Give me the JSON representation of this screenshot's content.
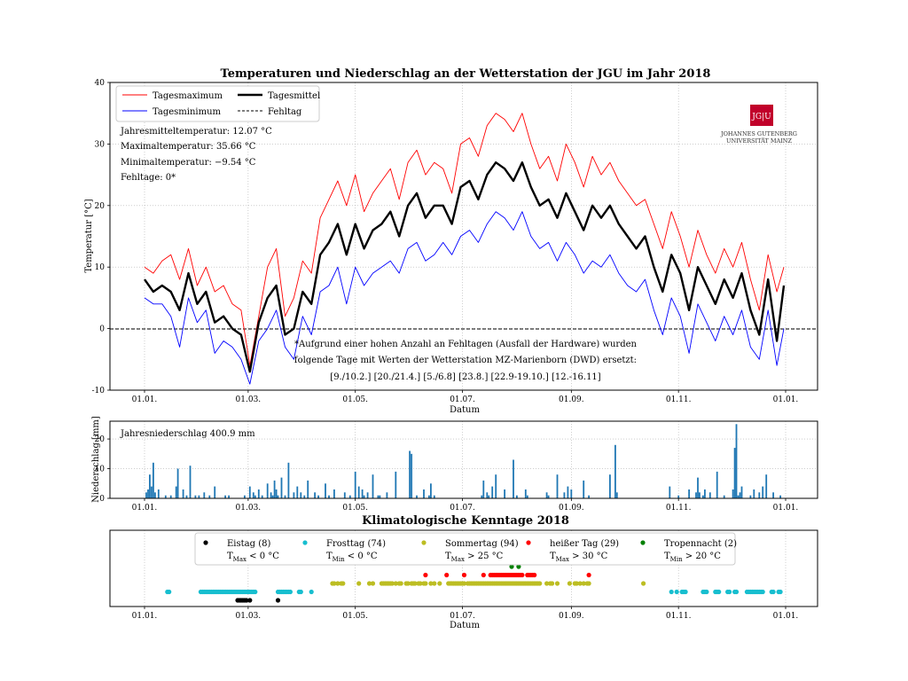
{
  "figure": {
    "title": "Temperaturen und Niederschlag an der Wetterstation der JGU im Jahr 2018",
    "title2": "Klimatologische Kenntage 2018"
  },
  "logo": {
    "text_box": "JG|U",
    "line1": "JOHANNES GUTENBERG",
    "line2": "UNIVERSITÄT MAINZ",
    "color": "#c1002a"
  },
  "temp_stats": {
    "line1": "Jahresmitteltemperatur: 12.07 °C",
    "line2": "Maximaltemperatur: 35.66 °C",
    "line3": "Minimaltemperatur: −9.54 °C",
    "line4": "Fehltage: 0*"
  },
  "note": {
    "line1": "*Aufgrund einer hohen Anzahl an Fehltagen (Ausfall der Hardware) wurden",
    "line2": "folgende Tage mit Werten der Wetterstation MZ-Marienborn (DWD) ersetzt:",
    "line3": "[9./10.2.] [20./21.4.] [5./6.8] [23.8.] [22.9-19.10.] [12.-16.11]"
  },
  "precip_label": "Jahresniederschlag 400.9 mm",
  "kenntage_legend": [
    {
      "label": "Eistag (8)",
      "cond": "T",
      "sub": "Max",
      "rel": " < 0 °C",
      "color": "#000000"
    },
    {
      "label": "Frosttag (74)",
      "cond": "T",
      "sub": "Min",
      "rel": " < 0 °C",
      "color": "#17becf"
    },
    {
      "label": "Sommertag (94)",
      "cond": "T",
      "sub": "Max",
      "rel": " > 25 °C",
      "color": "#bcbd22"
    },
    {
      "label": "heißer Tag (29)",
      "cond": "T",
      "sub": "Max",
      "rel": " > 30 °C",
      "color": "#ff0000"
    },
    {
      "label": "Tropennacht (2)",
      "cond": "T",
      "sub": "Min",
      "rel": " > 20 °C",
      "color": "#008000"
    }
  ],
  "chart_data": [
    {
      "type": "line",
      "title": "Temperaturen und Niederschlag an der Wetterstation der JGU im Jahr 2018",
      "xlabel": "Datum",
      "ylabel": "Temperatur [°C]",
      "ylim": [
        -10,
        40
      ],
      "yticks": [
        -10,
        0,
        10,
        20,
        30,
        40
      ],
      "xticks": [
        "01.01.",
        "01.03.",
        "01.05.",
        "01.07.",
        "01.09.",
        "01.11.",
        "01.01."
      ],
      "xtick_days": [
        0,
        59,
        120,
        181,
        243,
        304,
        365
      ],
      "grid": true,
      "legend_position": "upper-left",
      "legend": [
        {
          "name": "Tagesmaximum",
          "color": "#ff0000",
          "style": "solid"
        },
        {
          "name": "Tagesminimum",
          "color": "#0000ff",
          "style": "solid"
        },
        {
          "name": "Tagesmittel",
          "color": "#000000",
          "style": "solid-thick"
        },
        {
          "name": "Fehltag",
          "color": "#000000",
          "style": "dashed"
        }
      ],
      "series": [
        {
          "name": "Tagesmaximum",
          "x_days": [
            0,
            5,
            10,
            15,
            20,
            25,
            30,
            35,
            40,
            45,
            50,
            55,
            60,
            65,
            70,
            75,
            80,
            85,
            90,
            95,
            100,
            105,
            110,
            115,
            120,
            125,
            130,
            135,
            140,
            145,
            150,
            155,
            160,
            165,
            170,
            175,
            180,
            185,
            190,
            195,
            200,
            205,
            210,
            215,
            220,
            225,
            230,
            235,
            240,
            245,
            250,
            255,
            260,
            265,
            270,
            275,
            280,
            285,
            290,
            295,
            300,
            305,
            310,
            315,
            320,
            325,
            330,
            335,
            340,
            345,
            350,
            355,
            360,
            364
          ],
          "values": [
            10,
            9,
            11,
            12,
            8,
            13,
            7,
            10,
            6,
            7,
            4,
            3,
            -6,
            2,
            10,
            13,
            2,
            5,
            11,
            9,
            18,
            21,
            24,
            20,
            25,
            19,
            22,
            24,
            26,
            21,
            27,
            29,
            25,
            27,
            26,
            22,
            30,
            31,
            28,
            33,
            35,
            34,
            32,
            35,
            30,
            26,
            28,
            24,
            30,
            27,
            23,
            28,
            25,
            27,
            24,
            22,
            20,
            21,
            17,
            13,
            19,
            15,
            10,
            16,
            12,
            9,
            13,
            10,
            14,
            8,
            3,
            12,
            6,
            10
          ]
        },
        {
          "name": "Tagesminimum",
          "x_days": [
            0,
            5,
            10,
            15,
            20,
            25,
            30,
            35,
            40,
            45,
            50,
            55,
            60,
            65,
            70,
            75,
            80,
            85,
            90,
            95,
            100,
            105,
            110,
            115,
            120,
            125,
            130,
            135,
            140,
            145,
            150,
            155,
            160,
            165,
            170,
            175,
            180,
            185,
            190,
            195,
            200,
            205,
            210,
            215,
            220,
            225,
            230,
            235,
            240,
            245,
            250,
            255,
            260,
            265,
            270,
            275,
            280,
            285,
            290,
            295,
            300,
            305,
            310,
            315,
            320,
            325,
            330,
            335,
            340,
            345,
            350,
            355,
            360,
            364
          ],
          "values": [
            5,
            4,
            4,
            2,
            -3,
            5,
            1,
            3,
            -4,
            -2,
            -3,
            -5,
            -9,
            -2,
            0,
            3,
            -3,
            -5,
            2,
            -1,
            6,
            7,
            10,
            4,
            10,
            7,
            9,
            10,
            11,
            9,
            13,
            14,
            11,
            12,
            14,
            12,
            15,
            16,
            14,
            17,
            19,
            18,
            16,
            19,
            15,
            13,
            14,
            11,
            14,
            12,
            9,
            11,
            10,
            12,
            9,
            7,
            6,
            8,
            3,
            -1,
            5,
            2,
            -4,
            4,
            1,
            -2,
            2,
            -1,
            3,
            -3,
            -5,
            3,
            -6,
            0
          ]
        },
        {
          "name": "Tagesmittel",
          "x_days": [
            0,
            5,
            10,
            15,
            20,
            25,
            30,
            35,
            40,
            45,
            50,
            55,
            60,
            65,
            70,
            75,
            80,
            85,
            90,
            95,
            100,
            105,
            110,
            115,
            120,
            125,
            130,
            135,
            140,
            145,
            150,
            155,
            160,
            165,
            170,
            175,
            180,
            185,
            190,
            195,
            200,
            205,
            210,
            215,
            220,
            225,
            230,
            235,
            240,
            245,
            250,
            255,
            260,
            265,
            270,
            275,
            280,
            285,
            290,
            295,
            300,
            305,
            310,
            315,
            320,
            325,
            330,
            335,
            340,
            345,
            350,
            355,
            360,
            364
          ],
          "values": [
            8,
            6,
            7,
            6,
            3,
            9,
            4,
            6,
            1,
            2,
            0,
            -1,
            -7,
            1,
            5,
            7,
            -1,
            0,
            6,
            4,
            12,
            14,
            17,
            12,
            17,
            13,
            16,
            17,
            19,
            15,
            20,
            22,
            18,
            20,
            20,
            17,
            23,
            24,
            21,
            25,
            27,
            26,
            24,
            27,
            23,
            20,
            21,
            18,
            22,
            19,
            16,
            20,
            18,
            20,
            17,
            15,
            13,
            15,
            10,
            6,
            12,
            9,
            3,
            10,
            7,
            4,
            8,
            5,
            9,
            3,
            -1,
            8,
            -2,
            7
          ]
        }
      ]
    },
    {
      "type": "bar",
      "ylabel": "Niederschlag [mm]",
      "ylim": [
        0,
        26
      ],
      "yticks": [
        0,
        10,
        20
      ],
      "xticks": [
        "01.01.",
        "01.03.",
        "01.05.",
        "01.07.",
        "01.09.",
        "01.11.",
        "01.01."
      ],
      "xtick_days": [
        0,
        59,
        120,
        181,
        243,
        304,
        365
      ],
      "color": "#1f77b4",
      "x_days": [
        1,
        2,
        3,
        4,
        5,
        6,
        8,
        12,
        15,
        18,
        19,
        22,
        24,
        26,
        29,
        31,
        34,
        37,
        40,
        46,
        48,
        57,
        60,
        62,
        63,
        65,
        67,
        70,
        72,
        73,
        74,
        75,
        76,
        78,
        80,
        82,
        85,
        87,
        89,
        91,
        93,
        97,
        99,
        103,
        105,
        108,
        114,
        117,
        120,
        122,
        124,
        125,
        127,
        130,
        133,
        134,
        138,
        143,
        151,
        152,
        155,
        159,
        162,
        163,
        165,
        192,
        193,
        195,
        196,
        198,
        200,
        205,
        210,
        212,
        217,
        218,
        229,
        230,
        235,
        239,
        241,
        243,
        250,
        253,
        265,
        268,
        269,
        299,
        304,
        310,
        314,
        315,
        316,
        318,
        319,
        322,
        326,
        330,
        335,
        336,
        337,
        338,
        339,
        340,
        345,
        347,
        350,
        352,
        354,
        358,
        362
      ],
      "values": [
        2,
        3,
        8,
        4,
        12,
        2,
        3,
        1,
        1,
        4,
        10,
        3,
        1,
        11,
        1,
        1,
        2,
        1,
        4,
        1,
        1,
        1,
        4,
        2,
        1,
        3,
        1,
        5,
        2,
        1,
        6,
        3,
        1,
        7,
        1,
        12,
        2,
        4,
        2,
        1,
        6,
        2,
        1,
        5,
        1,
        3,
        2,
        1,
        9,
        4,
        3,
        1,
        2,
        8,
        1,
        1,
        2,
        9,
        16,
        15,
        1,
        3,
        1,
        5,
        1,
        1,
        6,
        2,
        1,
        4,
        8,
        3,
        13,
        1,
        3,
        1,
        2,
        1,
        8,
        2,
        4,
        3,
        6,
        1,
        8,
        18,
        2,
        4,
        1,
        3,
        2,
        7,
        2,
        1,
        3,
        2,
        9,
        1,
        3,
        17,
        25,
        1,
        2,
        4,
        1,
        3,
        2,
        4,
        8,
        2,
        1
      ]
    },
    {
      "type": "scatter",
      "title": "Klimatologische Kenntage 2018",
      "xlabel": "Datum",
      "xticks": [
        "01.01.",
        "01.03.",
        "01.05.",
        "01.07.",
        "01.09.",
        "01.11.",
        "01.01."
      ],
      "xtick_days": [
        0,
        59,
        120,
        181,
        243,
        304,
        365
      ],
      "legend_position": "top",
      "series": [
        {
          "name": "Eistag (8)",
          "color": "#000000",
          "level": 1,
          "x_days": [
            53,
            54,
            55,
            56,
            57,
            58,
            60,
            76
          ]
        },
        {
          "name": "Frosttag (74)",
          "color": "#17becf",
          "level": 2,
          "x_days": [
            13,
            14,
            32,
            33,
            34,
            35,
            36,
            37,
            38,
            39,
            40,
            41,
            42,
            43,
            44,
            45,
            46,
            47,
            48,
            49,
            50,
            51,
            52,
            53,
            54,
            55,
            56,
            57,
            58,
            59,
            60,
            61,
            62,
            63,
            76,
            77,
            78,
            79,
            80,
            81,
            82,
            83,
            88,
            89,
            95,
            300,
            303,
            306,
            307,
            308,
            318,
            319,
            320,
            325,
            326,
            327,
            332,
            333,
            336,
            337,
            343,
            344,
            345,
            346,
            347,
            348,
            349,
            350,
            351,
            352,
            357,
            358,
            361,
            362
          ]
        },
        {
          "name": "Sommertag (94)",
          "color": "#bcbd22",
          "level": 3,
          "x_days": [
            107,
            108,
            110,
            112,
            113,
            122,
            128,
            130,
            135,
            136,
            137,
            138,
            139,
            140,
            141,
            143,
            145,
            146,
            149,
            150,
            152,
            153,
            154,
            156,
            157,
            159,
            160,
            163,
            165,
            168,
            173,
            174,
            175,
            176,
            177,
            178,
            179,
            180,
            181,
            182,
            184,
            185,
            186,
            187,
            188,
            189,
            190,
            191,
            192,
            193,
            194,
            195,
            196,
            197,
            198,
            199,
            200,
            201,
            202,
            203,
            204,
            205,
            206,
            207,
            208,
            209,
            210,
            211,
            212,
            213,
            214,
            215,
            216,
            217,
            218,
            219,
            220,
            221,
            222,
            223,
            224,
            225,
            229,
            231,
            232,
            235,
            242,
            245,
            246,
            248,
            250,
            252,
            253,
            284
          ]
        },
        {
          "name": "heißer Tag (29)",
          "color": "#ff0000",
          "level": 4,
          "x_days": [
            160,
            172,
            182,
            193,
            197,
            198,
            199,
            200,
            201,
            202,
            203,
            204,
            205,
            206,
            207,
            208,
            209,
            210,
            211,
            212,
            213,
            214,
            215,
            218,
            219,
            220,
            221,
            222,
            253
          ]
        },
        {
          "name": "Tropennacht (2)",
          "color": "#008000",
          "level": 5,
          "x_days": [
            209,
            213
          ]
        }
      ]
    }
  ]
}
